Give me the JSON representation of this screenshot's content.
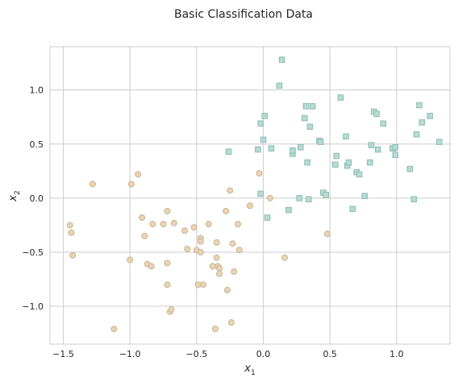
{
  "chart_data": {
    "type": "scatter",
    "title": "Basic Classification Data",
    "xlabel": {
      "base": "x",
      "sub": "1"
    },
    "ylabel": {
      "base": "x",
      "sub": "2"
    },
    "xlim": [
      -1.6,
      1.4
    ],
    "ylim": [
      -1.35,
      1.4
    ],
    "xticks": [
      -1.5,
      -1.0,
      -0.5,
      0.0,
      0.5,
      1.0
    ],
    "xtick_labels": [
      "−1.5",
      "−1.0",
      "−0.5",
      "0.0",
      "0.5",
      "1.0"
    ],
    "yticks": [
      -1.0,
      -0.5,
      0.0,
      0.5,
      1.0
    ],
    "ytick_labels": [
      "−1.0",
      "−0.5",
      "0.0",
      "0.5",
      "1.0"
    ],
    "grid": true,
    "series": [
      {
        "marker": "circle",
        "face_color": "#e8d5b5",
        "edge_color": "#c8b593",
        "points": [
          [
            -1.45,
            -0.25
          ],
          [
            -1.44,
            -0.32
          ],
          [
            -1.43,
            -0.53
          ],
          [
            -1.28,
            0.13
          ],
          [
            -1.12,
            -1.21
          ],
          [
            -1.0,
            -0.57
          ],
          [
            -0.99,
            0.13
          ],
          [
            -0.94,
            0.22
          ],
          [
            -0.91,
            -0.18
          ],
          [
            -0.89,
            -0.35
          ],
          [
            -0.87,
            -0.61
          ],
          [
            -0.83,
            -0.24
          ],
          [
            -0.84,
            -0.63
          ],
          [
            -0.75,
            -0.24
          ],
          [
            -0.72,
            -0.12
          ],
          [
            -0.72,
            -0.6
          ],
          [
            -0.72,
            -0.8
          ],
          [
            -0.7,
            -1.05
          ],
          [
            -0.69,
            -1.03
          ],
          [
            -0.67,
            -0.23
          ],
          [
            -0.59,
            -0.3
          ],
          [
            -0.57,
            -0.47
          ],
          [
            -0.52,
            -0.27
          ],
          [
            -0.5,
            -0.48
          ],
          [
            -0.49,
            -0.8
          ],
          [
            -0.47,
            -0.5
          ],
          [
            -0.47,
            -0.37
          ],
          [
            -0.47,
            -0.4
          ],
          [
            -0.45,
            -0.8
          ],
          [
            -0.41,
            -0.24
          ],
          [
            -0.38,
            -0.63
          ],
          [
            -0.36,
            -1.21
          ],
          [
            -0.35,
            -0.41
          ],
          [
            -0.35,
            -0.55
          ],
          [
            -0.34,
            -0.63
          ],
          [
            -0.33,
            -0.65
          ],
          [
            -0.33,
            -0.7
          ],
          [
            -0.28,
            -0.12
          ],
          [
            -0.27,
            -0.85
          ],
          [
            -0.25,
            0.07
          ],
          [
            -0.24,
            -1.15
          ],
          [
            -0.23,
            -0.42
          ],
          [
            -0.22,
            -0.68
          ],
          [
            -0.19,
            -0.24
          ],
          [
            -0.18,
            -0.48
          ],
          [
            -0.1,
            -0.07
          ],
          [
            -0.03,
            0.23
          ],
          [
            0.05,
            -0.0
          ],
          [
            0.16,
            -0.55
          ],
          [
            0.48,
            -0.33
          ]
        ]
      },
      {
        "marker": "square",
        "face_color": "#b5dbd3",
        "edge_color": "#90bcb3",
        "points": [
          [
            -0.26,
            0.43
          ],
          [
            -0.04,
            0.45
          ],
          [
            -0.02,
            0.69
          ],
          [
            -0.02,
            0.04
          ],
          [
            0.0,
            0.54
          ],
          [
            0.01,
            0.76
          ],
          [
            0.03,
            -0.18
          ],
          [
            0.06,
            0.46
          ],
          [
            0.12,
            1.04
          ],
          [
            0.14,
            1.28
          ],
          [
            0.19,
            -0.11
          ],
          [
            0.22,
            0.41
          ],
          [
            0.22,
            0.44
          ],
          [
            0.27,
            0.0
          ],
          [
            0.28,
            0.47
          ],
          [
            0.31,
            0.74
          ],
          [
            0.32,
            0.85
          ],
          [
            0.33,
            0.33
          ],
          [
            0.34,
            -0.01
          ],
          [
            0.35,
            0.66
          ],
          [
            0.37,
            0.85
          ],
          [
            0.42,
            0.53
          ],
          [
            0.43,
            0.52
          ],
          [
            0.45,
            0.05
          ],
          [
            0.47,
            0.03
          ],
          [
            0.54,
            0.31
          ],
          [
            0.55,
            0.39
          ],
          [
            0.58,
            0.93
          ],
          [
            0.62,
            0.57
          ],
          [
            0.63,
            0.3
          ],
          [
            0.64,
            0.33
          ],
          [
            0.67,
            -0.1
          ],
          [
            0.7,
            0.24
          ],
          [
            0.72,
            0.22
          ],
          [
            0.76,
            0.02
          ],
          [
            0.8,
            0.33
          ],
          [
            0.81,
            0.49
          ],
          [
            0.83,
            0.8
          ],
          [
            0.85,
            0.78
          ],
          [
            0.86,
            0.45
          ],
          [
            0.9,
            0.69
          ],
          [
            0.97,
            0.46
          ],
          [
            0.99,
            0.4
          ],
          [
            0.99,
            0.47
          ],
          [
            1.1,
            0.27
          ],
          [
            1.13,
            -0.01
          ],
          [
            1.15,
            0.59
          ],
          [
            1.17,
            0.86
          ],
          [
            1.19,
            0.7
          ],
          [
            1.25,
            0.76
          ],
          [
            1.32,
            0.52
          ]
        ]
      }
    ]
  }
}
